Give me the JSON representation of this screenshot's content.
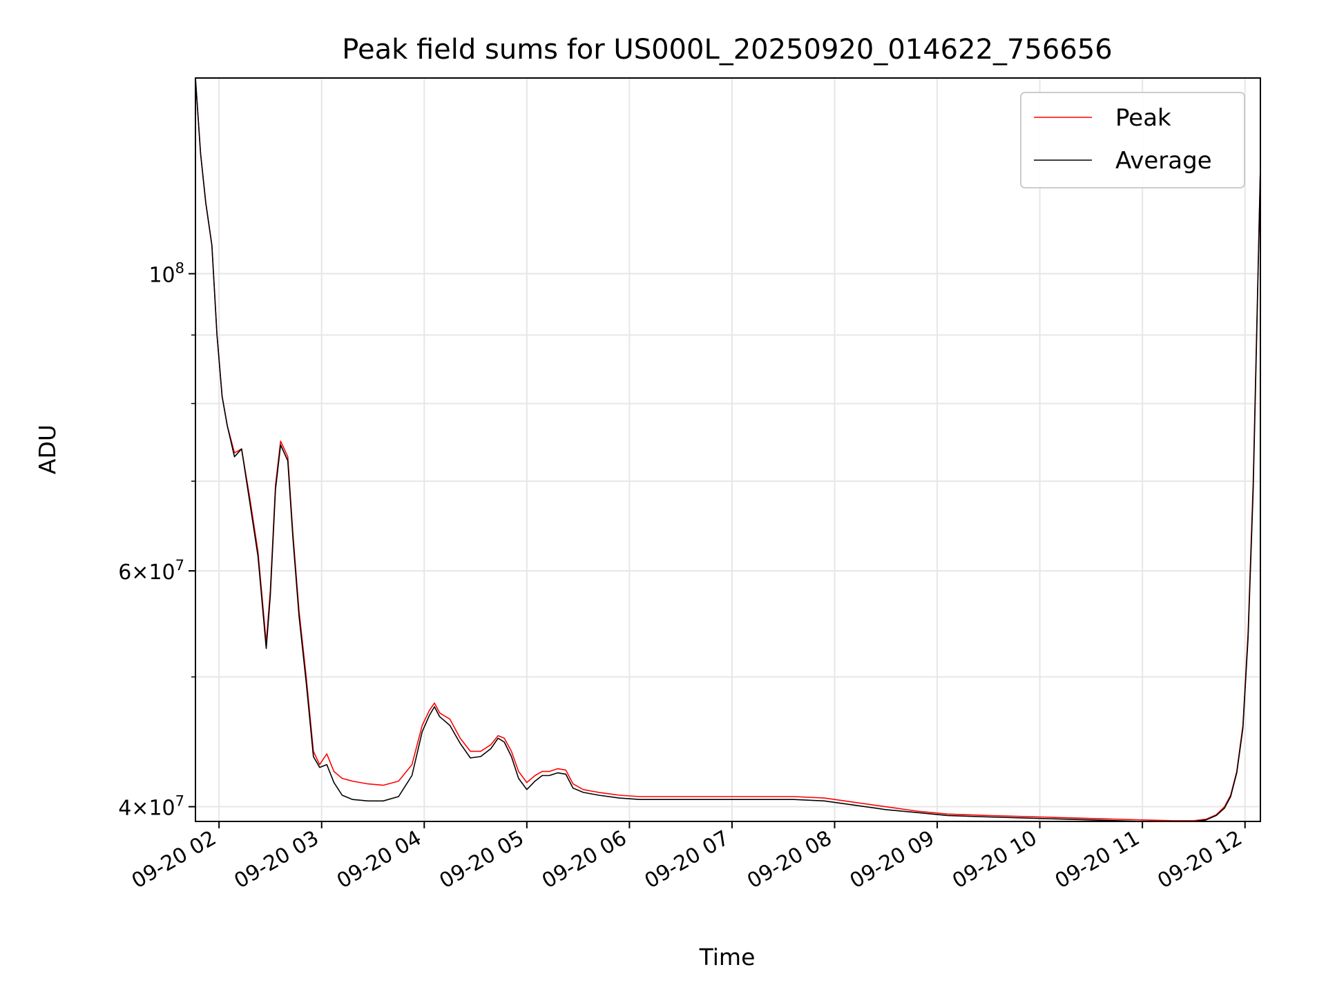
{
  "chart_data": {
    "type": "line",
    "title": "Peak field sums for US000L_20250920_014622_756656",
    "xlabel": "Time",
    "ylabel": "ADU",
    "yscale": "log",
    "xlim": [
      1.77,
      12.15
    ],
    "ylim": [
      39000000,
      140000000
    ],
    "grid": true,
    "legend_position": "top-right",
    "x_ticks": [
      {
        "value": 2,
        "label": "09-20 02"
      },
      {
        "value": 3,
        "label": "09-20 03"
      },
      {
        "value": 4,
        "label": "09-20 04"
      },
      {
        "value": 5,
        "label": "09-20 05"
      },
      {
        "value": 6,
        "label": "09-20 06"
      },
      {
        "value": 7,
        "label": "09-20 07"
      },
      {
        "value": 8,
        "label": "09-20 08"
      },
      {
        "value": 9,
        "label": "09-20 09"
      },
      {
        "value": 10,
        "label": "09-20 10"
      },
      {
        "value": 11,
        "label": "09-20 11"
      },
      {
        "value": 12,
        "label": "09-20 12"
      }
    ],
    "y_major_ticks": [
      {
        "value": 40000000,
        "base": "4",
        "exp": "7"
      },
      {
        "value": 60000000,
        "base": "6",
        "exp": "7"
      },
      {
        "value": 100000000,
        "base": "",
        "exp": "8"
      }
    ],
    "y_minor_ticks": [
      40000000,
      50000000,
      60000000,
      70000000,
      80000000,
      90000000,
      100000000
    ],
    "series": [
      {
        "name": "Peak",
        "color": "#ff0000",
        "x": [
          1.77,
          1.82,
          1.87,
          1.93,
          1.98,
          2.03,
          2.08,
          2.15,
          2.22,
          2.3,
          2.38,
          2.46,
          2.5,
          2.55,
          2.6,
          2.67,
          2.72,
          2.78,
          2.85,
          2.92,
          2.98,
          3.05,
          3.12,
          3.2,
          3.3,
          3.45,
          3.6,
          3.75,
          3.88,
          3.98,
          4.05,
          4.1,
          4.15,
          4.25,
          4.35,
          4.45,
          4.55,
          4.65,
          4.72,
          4.78,
          4.85,
          4.92,
          5.0,
          5.08,
          5.15,
          5.22,
          5.3,
          5.38,
          5.45,
          5.55,
          5.7,
          5.9,
          6.1,
          6.4,
          6.8,
          7.2,
          7.6,
          7.9,
          8.2,
          8.5,
          8.8,
          9.1,
          9.5,
          10.0,
          10.5,
          11.0,
          11.3,
          11.5,
          11.62,
          11.72,
          11.8,
          11.86,
          11.92,
          11.98,
          12.03,
          12.08,
          12.12,
          12.15
        ],
        "values": [
          140000000,
          123000000,
          113000000,
          105000000,
          90000000,
          81000000,
          77000000,
          73500000,
          74000000,
          68000000,
          62000000,
          53000000,
          58000000,
          69500000,
          75000000,
          73000000,
          64000000,
          56000000,
          50000000,
          44000000,
          43000000,
          43800000,
          42500000,
          42000000,
          41800000,
          41600000,
          41500000,
          41800000,
          43000000,
          46000000,
          47200000,
          47800000,
          47000000,
          46500000,
          45000000,
          44000000,
          44000000,
          44500000,
          45200000,
          45000000,
          44000000,
          42500000,
          41700000,
          42200000,
          42500000,
          42500000,
          42700000,
          42600000,
          41600000,
          41200000,
          41000000,
          40800000,
          40700000,
          40700000,
          40700000,
          40700000,
          40700000,
          40600000,
          40300000,
          40000000,
          39700000,
          39500000,
          39400000,
          39300000,
          39200000,
          39100000,
          39050000,
          39050000,
          39150000,
          39450000,
          40000000,
          40800000,
          42500000,
          46000000,
          54000000,
          70000000,
          95000000,
          120000000
        ]
      },
      {
        "name": "Average",
        "color": "#000000",
        "x": [
          1.77,
          1.82,
          1.87,
          1.93,
          1.98,
          2.03,
          2.08,
          2.15,
          2.22,
          2.3,
          2.38,
          2.46,
          2.5,
          2.55,
          2.6,
          2.67,
          2.72,
          2.78,
          2.85,
          2.92,
          2.98,
          3.05,
          3.12,
          3.2,
          3.3,
          3.45,
          3.6,
          3.75,
          3.88,
          3.98,
          4.05,
          4.1,
          4.15,
          4.25,
          4.35,
          4.45,
          4.55,
          4.65,
          4.72,
          4.78,
          4.85,
          4.92,
          5.0,
          5.08,
          5.15,
          5.22,
          5.3,
          5.38,
          5.45,
          5.55,
          5.7,
          5.9,
          6.1,
          6.4,
          6.8,
          7.2,
          7.6,
          7.9,
          8.2,
          8.5,
          8.8,
          9.1,
          9.5,
          10.0,
          10.5,
          11.0,
          11.3,
          11.5,
          11.62,
          11.72,
          11.8,
          11.86,
          11.92,
          11.98,
          12.03,
          12.08,
          12.12,
          12.15
        ],
        "values": [
          140000000,
          123000000,
          113000000,
          105000000,
          90000000,
          81000000,
          77000000,
          73000000,
          74000000,
          67500000,
          61500000,
          52500000,
          57500000,
          69000000,
          74500000,
          72500000,
          63500000,
          55500000,
          49500000,
          43600000,
          42800000,
          43000000,
          41700000,
          40800000,
          40500000,
          40400000,
          40400000,
          40700000,
          42200000,
          45500000,
          46800000,
          47500000,
          46700000,
          46000000,
          44600000,
          43500000,
          43600000,
          44200000,
          45000000,
          44700000,
          43600000,
          42000000,
          41200000,
          41800000,
          42200000,
          42200000,
          42400000,
          42300000,
          41300000,
          41000000,
          40800000,
          40600000,
          40500000,
          40500000,
          40500000,
          40500000,
          40500000,
          40400000,
          40100000,
          39800000,
          39600000,
          39400000,
          39300000,
          39200000,
          39100000,
          39000000,
          39000000,
          39000000,
          39100000,
          39400000,
          39900000,
          40700000,
          42400000,
          45800000,
          53500000,
          69000000,
          94000000,
          120000000
        ]
      }
    ]
  }
}
